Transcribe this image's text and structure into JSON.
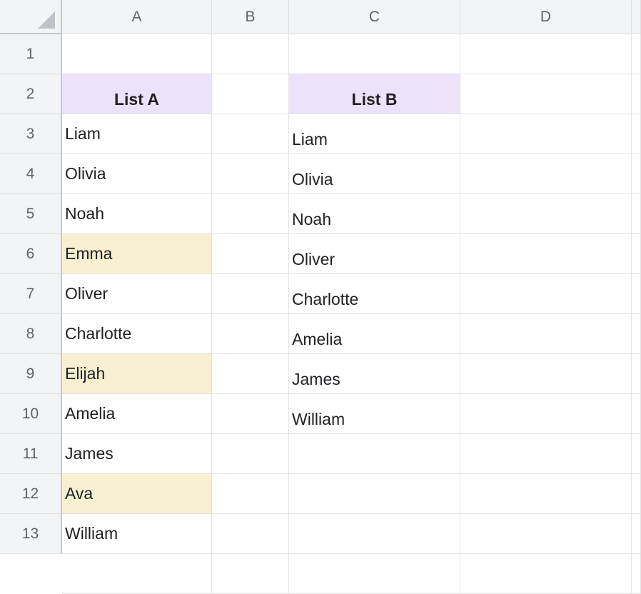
{
  "columns": [
    "A",
    "B",
    "C",
    "D"
  ],
  "rows": [
    "1",
    "2",
    "3",
    "4",
    "5",
    "6",
    "7",
    "8",
    "9",
    "10",
    "11",
    "12",
    "13"
  ],
  "list_a": {
    "header": "List A",
    "items": [
      "Liam",
      "Olivia",
      "Noah",
      "Emma",
      "Oliver",
      "Charlotte",
      "Elijah",
      "Amelia",
      "James",
      "Ava",
      "William"
    ],
    "highlighted": [
      "Emma",
      "Elijah",
      "Ava"
    ]
  },
  "list_b": {
    "header": "List B",
    "items": [
      "Liam",
      "Olivia",
      "Noah",
      "Oliver",
      "Charlotte",
      "Amelia",
      "James",
      "William"
    ]
  },
  "colors": {
    "header_fill": "#ece3fb",
    "highlight_fill": "#f9f0d1",
    "grid_header": "#f3f4f6"
  }
}
